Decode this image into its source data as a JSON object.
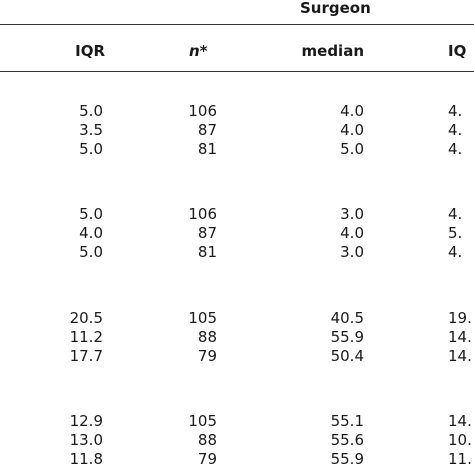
{
  "table": {
    "group_header": "Surgeon",
    "headers": {
      "iqr": "IQR",
      "n": "n*",
      "median": "median",
      "iqr2": "IQ"
    },
    "blocks": [
      {
        "rows": [
          {
            "iqr": "5.0",
            "n": "106",
            "median": "4.0",
            "iqr2": "4."
          },
          {
            "iqr": "3.5",
            "n": "87",
            "median": "4.0",
            "iqr2": "4."
          },
          {
            "iqr": "5.0",
            "n": "81",
            "median": "5.0",
            "iqr2": "4."
          }
        ]
      },
      {
        "rows": [
          {
            "iqr": "5.0",
            "n": "106",
            "median": "3.0",
            "iqr2": "4."
          },
          {
            "iqr": "4.0",
            "n": "87",
            "median": "4.0",
            "iqr2": "5."
          },
          {
            "iqr": "5.0",
            "n": "81",
            "median": "3.0",
            "iqr2": "4."
          }
        ]
      },
      {
        "rows": [
          {
            "iqr": "20.5",
            "n": "105",
            "median": "40.5",
            "iqr2": "19."
          },
          {
            "iqr": "11.2",
            "n": "88",
            "median": "55.9",
            "iqr2": "14."
          },
          {
            "iqr": "17.7",
            "n": "79",
            "median": "50.4",
            "iqr2": "14."
          }
        ]
      },
      {
        "rows": [
          {
            "iqr": "12.9",
            "n": "105",
            "median": "55.1",
            "iqr2": "14."
          },
          {
            "iqr": "13.0",
            "n": "88",
            "median": "55.6",
            "iqr2": "10."
          },
          {
            "iqr": "11.8",
            "n": "79",
            "median": "55.9",
            "iqr2": "11."
          }
        ]
      }
    ]
  }
}
